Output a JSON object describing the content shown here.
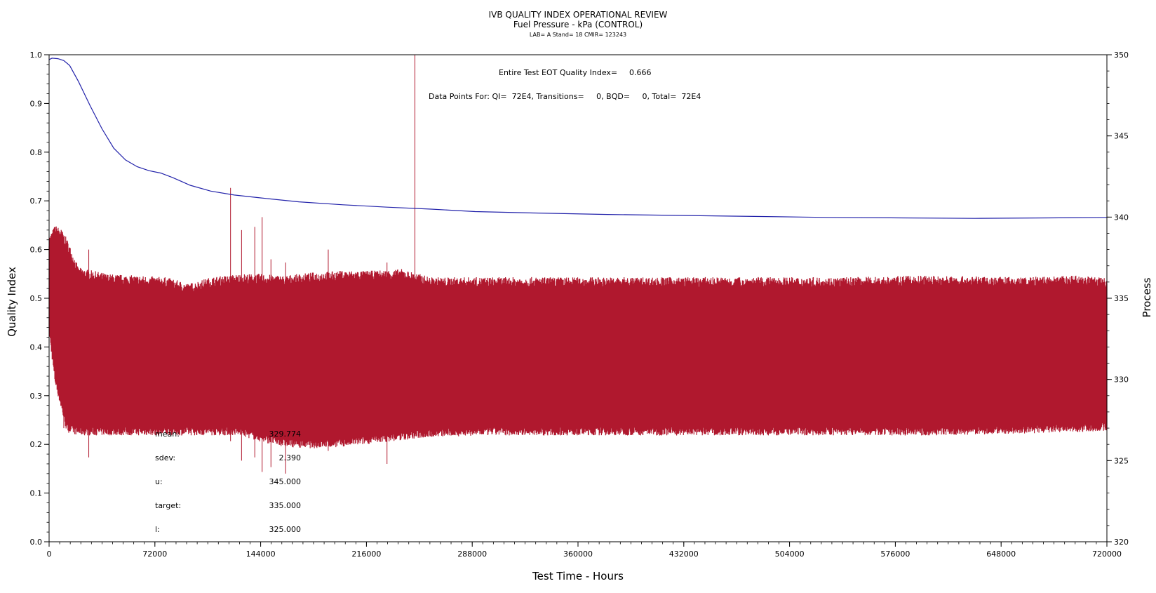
{
  "chart_data": {
    "type": "line",
    "title": "IVB QUALITY INDEX OPERATIONAL REVIEW",
    "subtitle": "Fuel Pressure - kPa (CONTROL)",
    "subtitle2": "LAB= A Stand= 18 CMIR= 123243",
    "xlabel": "Test Time - Hours",
    "ylabel": "Quality Index",
    "y2label": "Process",
    "xlim": [
      0,
      720000
    ],
    "ylim": [
      0.0,
      1.0
    ],
    "y2lim": [
      320,
      350
    ],
    "x_ticks": [
      0,
      72000,
      144000,
      216000,
      288000,
      360000,
      432000,
      504000,
      576000,
      648000,
      720000
    ],
    "y_ticks": [
      0.0,
      0.1,
      0.2,
      0.3,
      0.4,
      0.5,
      0.6,
      0.7,
      0.8,
      0.9,
      1.0
    ],
    "y_tick_labels": [
      "0.0",
      "0.1",
      "0.2",
      "0.3",
      "0.4",
      "0.5",
      "0.6",
      "0.7",
      "0.8",
      "0.9",
      "1.0"
    ],
    "y2_ticks": [
      320,
      325,
      330,
      335,
      340,
      345,
      350
    ],
    "grid": false,
    "series": [
      {
        "axis": "left",
        "color": "#2222aa",
        "x": [
          0,
          2000,
          6000,
          10000,
          14000,
          20000,
          28000,
          36000,
          44000,
          52000,
          60000,
          68000,
          76000,
          84000,
          96000,
          110000,
          126000,
          144000,
          170000,
          200000,
          230000,
          260000,
          290000,
          330000,
          380000,
          430000,
          480000,
          530000,
          580000,
          630000,
          680000,
          720000
        ],
        "values": [
          0.99,
          0.993,
          0.992,
          0.988,
          0.978,
          0.945,
          0.895,
          0.848,
          0.808,
          0.784,
          0.77,
          0.762,
          0.757,
          0.748,
          0.732,
          0.72,
          0.712,
          0.706,
          0.698,
          0.692,
          0.687,
          0.683,
          0.678,
          0.675,
          0.672,
          0.67,
          0.668,
          0.666,
          0.665,
          0.664,
          0.665,
          0.666
        ]
      },
      {
        "axis": "right",
        "color": "#b0182e",
        "x": [
          0,
          4000,
          8000,
          12000,
          20000,
          40000,
          60000,
          80000,
          95000,
          110000,
          130000,
          144000,
          160000,
          180000,
          200000,
          220000,
          240000,
          260000,
          300000,
          360000,
          420000,
          480000,
          540000,
          600000,
          660000,
          700000,
          720000
        ],
        "upper": [
          338.5,
          339.2,
          339.0,
          338.4,
          336.6,
          336.2,
          336.1,
          336.0,
          335.6,
          336.0,
          336.2,
          336.2,
          336.1,
          336.3,
          336.4,
          336.4,
          336.5,
          336.0,
          336.0,
          336.0,
          336.0,
          336.0,
          336.0,
          336.1,
          336.0,
          336.1,
          336.0
        ],
        "lower": [
          333.0,
          330.0,
          328.5,
          327.0,
          326.8,
          326.8,
          326.8,
          326.8,
          326.8,
          326.8,
          326.8,
          326.4,
          326.1,
          326.0,
          326.1,
          326.3,
          326.5,
          326.7,
          326.8,
          326.8,
          326.8,
          326.8,
          326.8,
          326.8,
          326.9,
          327.0,
          327.1
        ]
      }
    ],
    "spikes": [
      {
        "x": 123500,
        "high": 341.8,
        "low": 326.2
      },
      {
        "x": 131000,
        "high": 339.2,
        "low": 325.0
      },
      {
        "x": 140000,
        "high": 339.4,
        "low": 325.2
      },
      {
        "x": 145000,
        "high": 340.0,
        "low": 324.3
      },
      {
        "x": 151000,
        "high": 337.4,
        "low": 324.6
      },
      {
        "x": 161000,
        "high": 337.2,
        "low": 324.2
      },
      {
        "x": 190000,
        "high": 338.0,
        "low": 325.6
      },
      {
        "x": 230000,
        "high": 337.2,
        "low": 324.8
      },
      {
        "x": 249000,
        "high": 350.0,
        "low": 326.5
      },
      {
        "x": 27000,
        "high": 338.0,
        "low": 325.2
      },
      {
        "x": 10000,
        "high": 338.8,
        "low": 327.0
      }
    ],
    "annotations": {
      "eot_label": "Entire Test EOT Quality Index=",
      "eot_value": "0.666",
      "data_points": "Data Points For: QI=  72E4, Transitions=     0, BQD=     0, Total=  72E4"
    },
    "stats": [
      {
        "label": "mean:",
        "value": "329.774"
      },
      {
        "label": "sdev:",
        "value": "2.390"
      },
      {
        "label": "u:",
        "value": "345.000"
      },
      {
        "label": "target:",
        "value": "335.000"
      },
      {
        "label": "l:",
        "value": "325.000"
      }
    ]
  }
}
